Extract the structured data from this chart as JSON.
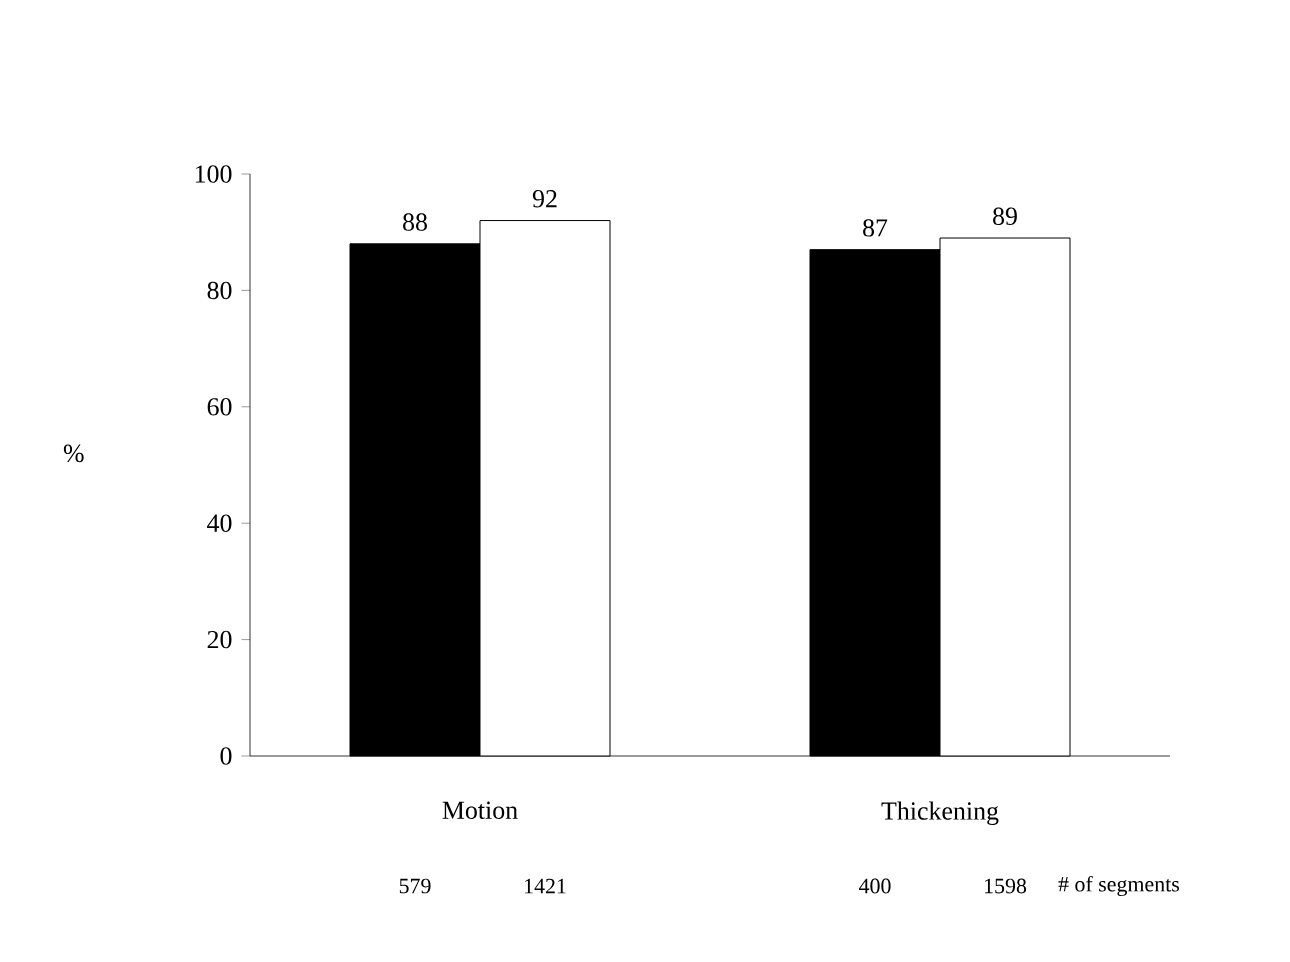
{
  "chart_data": {
    "type": "bar",
    "categories": [
      "Motion",
      "Thickening"
    ],
    "series": [
      {
        "color": "#000000",
        "values": [
          88,
          87
        ]
      },
      {
        "color": "#ffffff",
        "values": [
          92,
          89
        ]
      }
    ],
    "ylabel": "%",
    "ylim": [
      0,
      100
    ],
    "yticks": [
      0,
      20,
      40,
      60,
      80,
      100
    ],
    "data_labels": true,
    "annotations": [
      "579",
      "1421",
      "400",
      "1598",
      "# of segments"
    ]
  }
}
